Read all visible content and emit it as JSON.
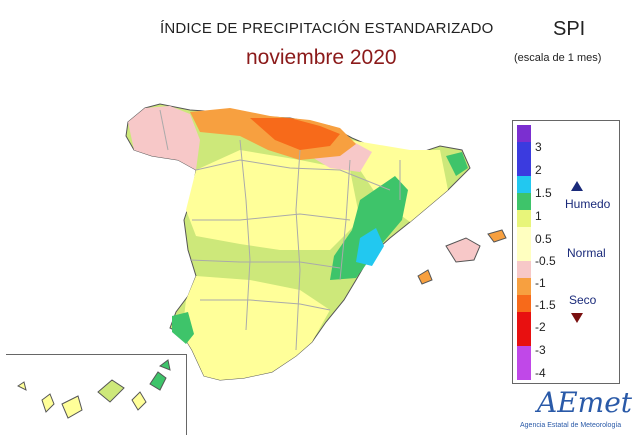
{
  "header": {
    "title": "ÍNDICE DE PRECIPITACIÓN ESTANDARIZADO",
    "subtitle": "noviembre 2020",
    "index": "SPI",
    "scale": "(escala de 1 mes)"
  },
  "legend": {
    "ticks": [
      "3",
      "2",
      "1.5",
      "1",
      "0.5",
      "-0.5",
      "-1",
      "-1.5",
      "-2",
      "-3",
      "-4"
    ],
    "colors": [
      "#7b2fd0",
      "#3b3bdf",
      "#22c8f0",
      "#3ec46a",
      "#e8f57a",
      "#ffffc0",
      "#f7c8c8",
      "#f7a040",
      "#f76a1a",
      "#e81010",
      "#c048e8"
    ],
    "humid_label": "Humedo",
    "normal_label": "Normal",
    "dry_label": "Seco"
  },
  "map": {
    "colors": {
      "base_green": "#cde87a",
      "yellow": "#ffff99",
      "pink": "#f7c8c8",
      "orange": "#f7a040",
      "darkorange": "#f76a1a",
      "green": "#3ec46a",
      "cyan": "#22c8f0",
      "border": "#aaaaaa"
    }
  },
  "logo": {
    "name": "AEmet",
    "agency": "Agencia Estatal de Meteorología"
  }
}
